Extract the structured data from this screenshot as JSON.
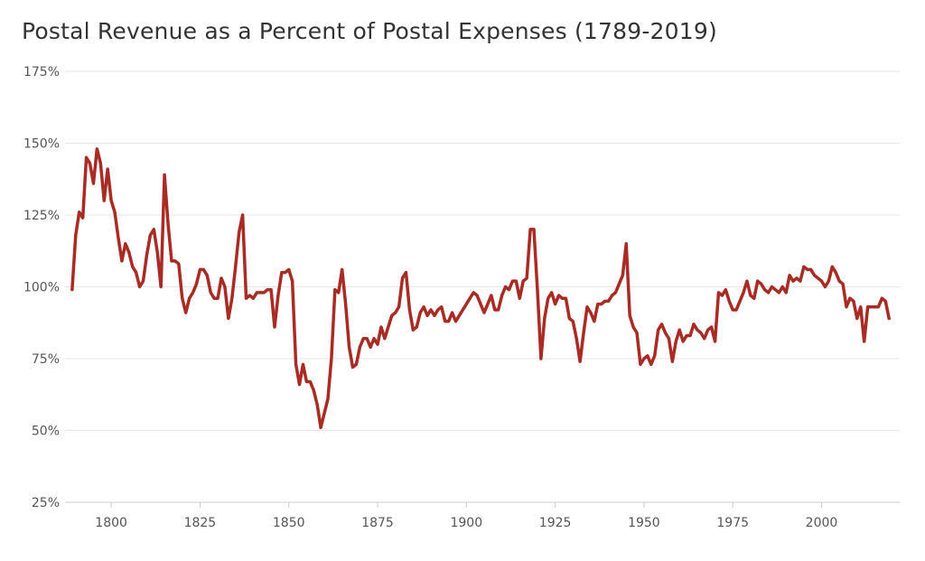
{
  "chart_data": {
    "type": "line",
    "title": "Postal Revenue as a Percent of Postal Expenses (1789-2019)",
    "xlabel": "",
    "ylabel": "",
    "xlim": [
      1787,
      2022
    ],
    "ylim": [
      25,
      175
    ],
    "y_ticks": [
      {
        "value": 25,
        "label": "25%"
      },
      {
        "value": 50,
        "label": "50%"
      },
      {
        "value": 75,
        "label": "75%"
      },
      {
        "value": 100,
        "label": "100%"
      },
      {
        "value": 125,
        "label": "125%"
      },
      {
        "value": 150,
        "label": "150%"
      },
      {
        "value": 175,
        "label": "175%"
      }
    ],
    "x_ticks": [
      {
        "value": 1800,
        "label": "1800"
      },
      {
        "value": 1825,
        "label": "1825"
      },
      {
        "value": 1850,
        "label": "1850"
      },
      {
        "value": 1875,
        "label": "1875"
      },
      {
        "value": 1900,
        "label": "1900"
      },
      {
        "value": 1925,
        "label": "1925"
      },
      {
        "value": 1950,
        "label": "1950"
      },
      {
        "value": 1975,
        "label": "1975"
      },
      {
        "value": 2000,
        "label": "2000"
      }
    ],
    "grid": true,
    "legend": "none",
    "line_color": "#a82b24",
    "series": [
      {
        "x": [
          1789,
          1790,
          1791,
          1792,
          1793,
          1794,
          1795,
          1796,
          1797,
          1798,
          1799,
          1800,
          1801,
          1802,
          1803,
          1804,
          1805,
          1806,
          1807,
          1808,
          1809,
          1810,
          1811,
          1812,
          1813,
          1814,
          1815,
          1816,
          1817,
          1818,
          1819,
          1820,
          1821,
          1822,
          1823,
          1824,
          1825,
          1826,
          1827,
          1828,
          1829,
          1830,
          1831,
          1832,
          1833,
          1834,
          1835,
          1836,
          1837,
          1838,
          1839,
          1840,
          1841,
          1842,
          1843,
          1844,
          1845,
          1846,
          1847,
          1848,
          1849,
          1850,
          1851,
          1852,
          1853,
          1854,
          1855,
          1856,
          1857,
          1858,
          1859,
          1860,
          1861,
          1862,
          1863,
          1864,
          1865,
          1866,
          1867,
          1868,
          1869,
          1870,
          1871,
          1872,
          1873,
          1874,
          1875,
          1876,
          1877,
          1878,
          1879,
          1880,
          1881,
          1882,
          1883,
          1884,
          1885,
          1886,
          1887,
          1888,
          1889,
          1890,
          1891,
          1892,
          1893,
          1894,
          1895,
          1896,
          1897,
          1898,
          1899,
          1900,
          1901,
          1902,
          1903,
          1904,
          1905,
          1906,
          1907,
          1908,
          1909,
          1910,
          1911,
          1912,
          1913,
          1914,
          1915,
          1916,
          1917,
          1918,
          1919,
          1920,
          1921,
          1922,
          1923,
          1924,
          1925,
          1926,
          1927,
          1928,
          1929,
          1930,
          1931,
          1932,
          1933,
          1934,
          1935,
          1936,
          1937,
          1938,
          1939,
          1940,
          1941,
          1942,
          1943,
          1944,
          1945,
          1946,
          1947,
          1948,
          1949,
          1950,
          1951,
          1952,
          1953,
          1954,
          1955,
          1956,
          1957,
          1958,
          1959,
          1960,
          1961,
          1962,
          1963,
          1964,
          1965,
          1966,
          1967,
          1968,
          1969,
          1970,
          1971,
          1972,
          1973,
          1974,
          1975,
          1976,
          1977,
          1978,
          1979,
          1980,
          1981,
          1982,
          1983,
          1984,
          1985,
          1986,
          1987,
          1988,
          1989,
          1990,
          1991,
          1992,
          1993,
          1994,
          1995,
          1996,
          1997,
          1998,
          1999,
          2000,
          2001,
          2002,
          2003,
          2004,
          2005,
          2006,
          2007,
          2008,
          2009,
          2010,
          2011,
          2012,
          2013,
          2014,
          2015,
          2016,
          2017,
          2018,
          2019
        ],
        "values": [
          99,
          118,
          126,
          124,
          145,
          143,
          136,
          148,
          143,
          130,
          141,
          130,
          126,
          117,
          109,
          115,
          112,
          107,
          105,
          100,
          102,
          111,
          118,
          120,
          112,
          100,
          139,
          122,
          109,
          109,
          108,
          96,
          91,
          96,
          98,
          101,
          106,
          106,
          104,
          98,
          96,
          96,
          103,
          100,
          89,
          96,
          107,
          119,
          125,
          96,
          97,
          96,
          98,
          98,
          98,
          99,
          99,
          86,
          97,
          105,
          105,
          106,
          102,
          73,
          66,
          73,
          67,
          67,
          64,
          59,
          51,
          56,
          61,
          75,
          99,
          98,
          106,
          94,
          79,
          72,
          73,
          79,
          82,
          82,
          79,
          82,
          80,
          86,
          82,
          86,
          90,
          91,
          93,
          103,
          105,
          92,
          85,
          86,
          91,
          93,
          90,
          92,
          90,
          92,
          93,
          88,
          88,
          91,
          88,
          90,
          92,
          94,
          96,
          98,
          97,
          94,
          91,
          94,
          97,
          92,
          92,
          97,
          100,
          99,
          102,
          102,
          96,
          102,
          103,
          120,
          120,
          99,
          75,
          89,
          96,
          98,
          94,
          97,
          96,
          96,
          89,
          88,
          82,
          74,
          84,
          93,
          91,
          88,
          94,
          94,
          95,
          95,
          97,
          98,
          101,
          104,
          115,
          90,
          86,
          84,
          73,
          75,
          76,
          73,
          76,
          85,
          87,
          84,
          82,
          74,
          81,
          85,
          81,
          83,
          83,
          87,
          85,
          84,
          82,
          85,
          86,
          81,
          98,
          97,
          99,
          95,
          92,
          92,
          95,
          98,
          102,
          97,
          96,
          102,
          101,
          99,
          98,
          100,
          99,
          98,
          100,
          98,
          104,
          102,
          103,
          102,
          107,
          106,
          106,
          104,
          103,
          102,
          100,
          102,
          107,
          105,
          102,
          101,
          93,
          96,
          95,
          89,
          93,
          81,
          93,
          93,
          93,
          93,
          96,
          95,
          89
        ]
      }
    ]
  }
}
